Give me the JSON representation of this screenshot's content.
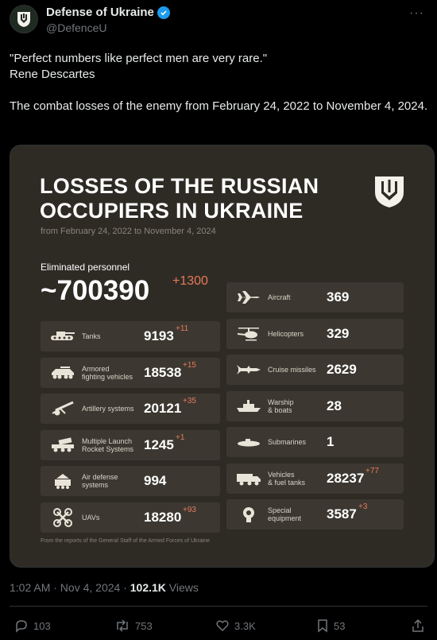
{
  "account": {
    "name": "Defense of Ukraine",
    "handle": "@DefenceU"
  },
  "tweet": {
    "line1": "\"Perfect numbers like perfect men are very rare.\"",
    "line2": "Rene Descartes",
    "line3": "The combat losses of the enemy from February 24, 2022 to November 4, 2024."
  },
  "card": {
    "title_line1": "LOSSES OF THE RUSSIAN",
    "title_line2": "OCCUPIERS IN UKRAINE",
    "subtitle": "from February 24, 2022 to November 4, 2024",
    "personnel_label": "Eliminated personnel",
    "personnel_value": "~700390",
    "personnel_delta": "+1300",
    "left_stats": [
      {
        "label": "Tanks",
        "value": "9193",
        "delta": "+11",
        "icon": "tank-icon"
      },
      {
        "label": "Armored\nfighting vehicles",
        "value": "18538",
        "delta": "+15",
        "icon": "armored-vehicle-icon"
      },
      {
        "label": "Artillery systems",
        "value": "20121",
        "delta": "+35",
        "icon": "artillery-icon"
      },
      {
        "label": "Multiple Launch\nRocket Systems",
        "value": "1245",
        "delta": "+1",
        "icon": "rocket-launcher-icon"
      },
      {
        "label": "Air defense\nsystems",
        "value": "994",
        "delta": "",
        "icon": "air-defense-icon"
      },
      {
        "label": "UAVs",
        "value": "18280",
        "delta": "+93",
        "icon": "drone-icon"
      }
    ],
    "right_stats": [
      {
        "label": "Aircraft",
        "value": "369",
        "delta": "",
        "icon": "aircraft-icon"
      },
      {
        "label": "Helicopters",
        "value": "329",
        "delta": "",
        "icon": "helicopter-icon"
      },
      {
        "label": "Cruise missiles",
        "value": "2629",
        "delta": "",
        "icon": "missile-icon"
      },
      {
        "label": "Warship\n& boats",
        "value": "28",
        "delta": "",
        "icon": "warship-icon"
      },
      {
        "label": "Submarines",
        "value": "1",
        "delta": "",
        "icon": "submarine-icon"
      },
      {
        "label": "Vehicles\n& fuel tanks",
        "value": "28237",
        "delta": "+77",
        "icon": "truck-icon"
      },
      {
        "label": "Special\nequipment",
        "value": "3587",
        "delta": "+3",
        "icon": "special-equipment-icon"
      }
    ],
    "footer": "From the reports of the General Staff of the Armed Forces of Ukraine"
  },
  "meta": {
    "time": "1:02 AM · Nov 4, 2024 · ",
    "views_count": "102.1K",
    "views_label": " Views"
  },
  "actions": {
    "replies": "103",
    "reposts": "753",
    "likes": "3.3K",
    "bookmarks": "53"
  },
  "colors": {
    "background": "#000000",
    "card": "#2e2b25",
    "tile": "#3c3831",
    "delta": "#e6795a",
    "verified": "#1d9bf0"
  }
}
